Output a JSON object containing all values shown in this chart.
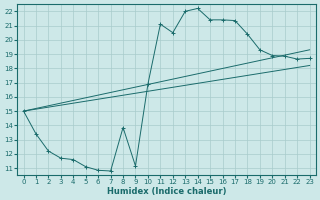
{
  "xlabel": "Humidex (Indice chaleur)",
  "bg_color": "#cde8e8",
  "grid_color": "#a8cccc",
  "line_color": "#1a6b6b",
  "xlim": [
    -0.5,
    23.5
  ],
  "ylim": [
    10.5,
    22.5
  ],
  "xticks": [
    0,
    1,
    2,
    3,
    4,
    5,
    6,
    7,
    8,
    9,
    10,
    11,
    12,
    13,
    14,
    15,
    16,
    17,
    18,
    19,
    20,
    21,
    22,
    23
  ],
  "yticks": [
    11,
    12,
    13,
    14,
    15,
    16,
    17,
    18,
    19,
    20,
    21,
    22
  ],
  "curve1_x": [
    0,
    1,
    2,
    3,
    4,
    5,
    6,
    7,
    8,
    9,
    10,
    11,
    12,
    13,
    14,
    15,
    16,
    17,
    18,
    19,
    20,
    21,
    22,
    23
  ],
  "curve1_y": [
    15.0,
    13.4,
    12.2,
    11.7,
    11.6,
    11.1,
    10.85,
    10.8,
    13.85,
    11.15,
    16.9,
    21.1,
    20.5,
    22.0,
    22.2,
    21.4,
    21.4,
    21.35,
    20.4,
    19.3,
    18.9,
    18.85,
    18.65,
    18.7
  ],
  "curve2_x": [
    0,
    23
  ],
  "curve2_y": [
    15.0,
    18.7
  ],
  "curve3_x": [
    0,
    23
  ],
  "curve3_y": [
    15.0,
    18.7
  ]
}
